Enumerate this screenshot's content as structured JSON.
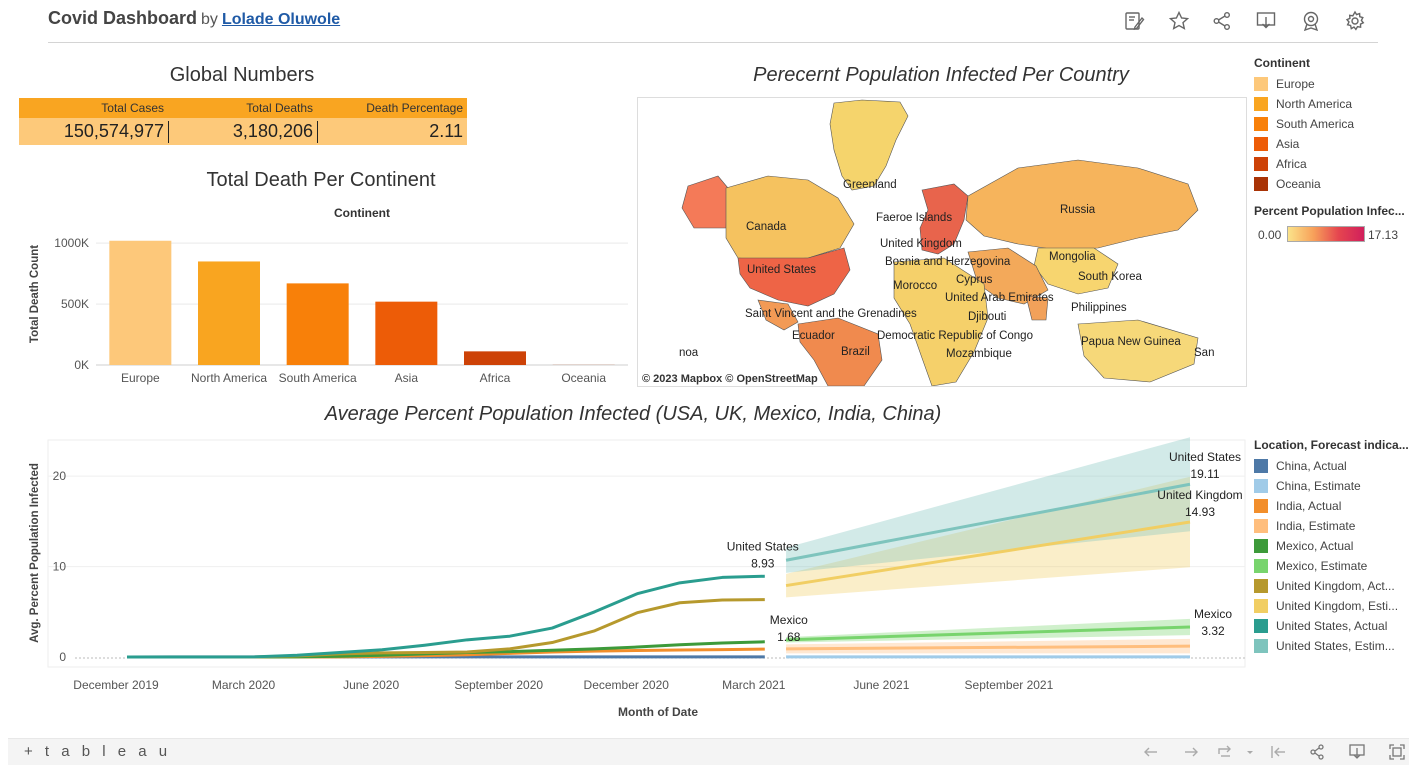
{
  "header": {
    "title": "Covid Dashboard",
    "by": "by",
    "author": "Lolade Oluwole",
    "toolbar_icons": [
      "edit-icon",
      "star-icon",
      "share-icon",
      "download-icon",
      "badge-icon",
      "gear-icon"
    ]
  },
  "global_numbers": {
    "title": "Global Numbers",
    "headers": [
      "Total Cases",
      "Total Deaths",
      "Death Percentage"
    ],
    "values": [
      "150,574,977",
      "3,180,206",
      "2.11"
    ]
  },
  "continent_legend": {
    "title": "Continent",
    "items": [
      {
        "label": "Europe",
        "color": "#fdc87a"
      },
      {
        "label": "North America",
        "color": "#f9a520"
      },
      {
        "label": "South America",
        "color": "#f88009"
      },
      {
        "label": "Asia",
        "color": "#ed5c07"
      },
      {
        "label": "Africa",
        "color": "#cd4207"
      },
      {
        "label": "Oceania",
        "color": "#a93306"
      }
    ]
  },
  "map_legend": {
    "title": "Percent Population Infec...",
    "min": "0.00",
    "max": "17.13",
    "gradient": [
      "#fbe38a",
      "#f7a15a",
      "#e5454f",
      "#d11f5c"
    ]
  },
  "map": {
    "title": "Perecernt Population Infected Per Country",
    "credit": "© 2023 Mapbox  © OpenStreetMap",
    "labels": [
      "Greenland",
      "Russia",
      "Canada",
      "Faeroe Islands",
      "United Kingdom",
      "Bosnia and Herzegovina",
      "Mongolia",
      "United States",
      "Morocco",
      "Cyprus",
      "South Korea",
      "United Arab Emirates",
      "Philippines",
      "Saint Vincent and the Grenadines",
      "Djibouti",
      "Ecuador",
      "Democratic Republic of Congo",
      "Papua New Guinea",
      "Brazil",
      "Mozambique",
      "noa",
      "San"
    ]
  },
  "chart_data": [
    {
      "type": "bar",
      "title": "Total Death Per Continent",
      "legend_title": "Continent",
      "xlabel": "",
      "ylabel": "Total Death Count",
      "categories": [
        "Europe",
        "North America",
        "South America",
        "Asia",
        "Africa",
        "Oceania"
      ],
      "values": [
        1020000,
        850000,
        670000,
        520000,
        112000,
        1000
      ],
      "colors": [
        "#fdc87a",
        "#f9a520",
        "#f88009",
        "#ed5c07",
        "#cd4207",
        "#a93306"
      ],
      "ylim": [
        0,
        1100000
      ],
      "yticks": [
        0,
        500000,
        1000000
      ],
      "ytick_labels": [
        "0K",
        "500K",
        "1000K"
      ],
      "grid": true
    },
    {
      "type": "line",
      "title": "Average Percent Population Infected (USA, UK, Mexico, India, China)",
      "xlabel": "Month of Date",
      "ylabel": "Avg. Percent Population Infected",
      "xticks": [
        "December 2019",
        "March 2020",
        "June 2020",
        "September 2020",
        "December 2020",
        "March 2021",
        "June 2021",
        "September 2021"
      ],
      "ylim": [
        0,
        24
      ],
      "yticks": [
        0,
        10,
        20
      ],
      "legend_title": "Location, Forecast indica...",
      "legend": [
        {
          "label": "China, Actual",
          "color": "#4e79a7"
        },
        {
          "label": "China, Estimate",
          "color": "#a0cbe8"
        },
        {
          "label": "India, Actual",
          "color": "#f28e2b"
        },
        {
          "label": "India, Estimate",
          "color": "#ffbe7d"
        },
        {
          "label": "Mexico, Actual",
          "color": "#3d9a3a"
        },
        {
          "label": "Mexico, Estimate",
          "color": "#78d46d"
        },
        {
          "label": "United Kingdom, Act...",
          "color": "#b6992d"
        },
        {
          "label": "United Kingdom, Esti...",
          "color": "#f1ce63"
        },
        {
          "label": "United States, Actual",
          "color": "#2a9d8f"
        },
        {
          "label": "United States, Estim...",
          "color": "#7ec4bd"
        }
      ],
      "x_index": [
        0,
        1,
        2,
        3,
        4,
        5,
        6,
        7,
        8,
        9,
        10,
        11,
        12,
        13,
        14,
        15
      ],
      "actual_series": [
        {
          "name": "China, Actual",
          "color": "#4e79a7",
          "values": [
            0,
            0.01,
            0.01,
            0.01,
            0.01,
            0.01,
            0.01,
            0.01,
            0.01,
            0.01,
            0.01,
            0.01,
            0.01,
            0.01,
            0.01,
            0.01
          ]
        },
        {
          "name": "India, Actual",
          "color": "#f28e2b",
          "values": [
            0,
            0,
            0,
            0,
            0,
            0.02,
            0.07,
            0.15,
            0.25,
            0.4,
            0.55,
            0.65,
            0.72,
            0.78,
            0.82,
            0.87
          ]
        },
        {
          "name": "Mexico, Actual",
          "color": "#3d9a3a",
          "values": [
            0,
            0,
            0,
            0,
            0.02,
            0.08,
            0.2,
            0.35,
            0.5,
            0.6,
            0.75,
            0.9,
            1.1,
            1.35,
            1.55,
            1.68
          ]
        },
        {
          "name": "United Kingdom, Actual",
          "color": "#b6992d",
          "values": [
            0,
            0,
            0,
            0,
            0.12,
            0.35,
            0.45,
            0.5,
            0.55,
            0.9,
            1.6,
            2.9,
            4.9,
            6.0,
            6.3,
            6.35
          ]
        },
        {
          "name": "United States, Actual",
          "color": "#2a9d8f",
          "values": [
            0,
            0,
            0,
            0.02,
            0.2,
            0.5,
            0.8,
            1.3,
            1.9,
            2.3,
            3.2,
            5.0,
            7.0,
            8.2,
            8.8,
            8.93
          ]
        }
      ],
      "estimate_x_range": [
        15.5,
        25
      ],
      "estimate_series": [
        {
          "name": "China, Estimate",
          "color": "#a0cbe8",
          "start": 0.01,
          "end": 0.02
        },
        {
          "name": "India, Estimate",
          "color": "#ffbe7d",
          "start": 0.9,
          "end": 1.2,
          "band": [
            0.5,
            0.8
          ]
        },
        {
          "name": "Mexico, Estimate",
          "color": "#78d46d",
          "start": 1.9,
          "end": 3.32,
          "band": [
            0.3,
            0.9
          ]
        },
        {
          "name": "United Kingdom, Estimate",
          "color": "#f1ce63",
          "start": 7.9,
          "end": 14.93,
          "band": [
            1.3,
            5.0
          ]
        },
        {
          "name": "United States, Estimate",
          "color": "#7ec4bd",
          "start": 10.7,
          "end": 19.11,
          "band": [
            1.4,
            5.2
          ]
        }
      ],
      "annotations": [
        {
          "name": "United States",
          "value": "8.93"
        },
        {
          "name": "Mexico",
          "value": "1.68"
        },
        {
          "name": "United States",
          "value": "19.11"
        },
        {
          "name": "United Kingdom",
          "value": "14.93"
        },
        {
          "name": "Mexico",
          "value": "3.32"
        }
      ]
    }
  ],
  "footer": {
    "logo": "+ t a b l e a u",
    "icons": [
      "undo-icon",
      "redo-icon",
      "revert-icon",
      "first-page-icon",
      "share-icon",
      "download-icon",
      "fullscreen-icon"
    ]
  }
}
